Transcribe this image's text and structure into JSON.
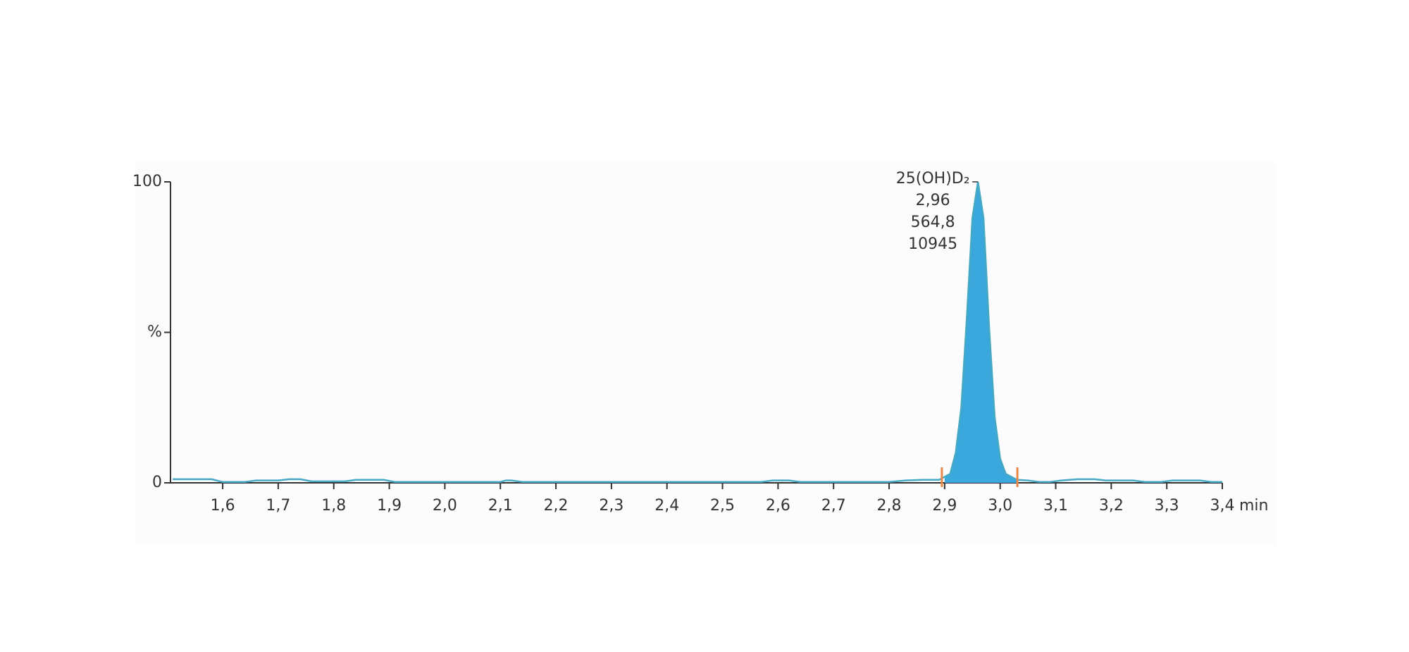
{
  "chart_data": {
    "type": "chromatogram",
    "x": [
      1.51,
      1.58,
      1.6,
      1.64,
      1.66,
      1.7,
      1.72,
      1.74,
      1.76,
      1.82,
      1.84,
      1.89,
      1.91,
      2.1,
      2.11,
      2.12,
      2.14,
      2.57,
      2.59,
      2.62,
      2.64,
      2.8,
      2.83,
      2.86,
      2.89,
      2.9,
      2.91,
      2.92,
      2.93,
      2.94,
      2.95,
      2.96,
      2.97,
      2.98,
      2.99,
      3.0,
      3.01,
      3.02,
      3.03,
      3.05,
      3.07,
      3.09,
      3.11,
      3.14,
      3.17,
      3.19,
      3.24,
      3.26,
      3.29,
      3.31,
      3.36,
      3.38,
      3.4
    ],
    "series": [
      {
        "color": "#45a9c4",
        "fill": "#3aa8dc",
        "values": [
          1.2,
          1.2,
          0.3,
          0.3,
          0.8,
          0.8,
          1.2,
          1.2,
          0.5,
          0.5,
          1.0,
          1.0,
          0.3,
          0.3,
          0.8,
          0.8,
          0.3,
          0.3,
          0.8,
          0.8,
          0.3,
          0.3,
          0.8,
          1.0,
          1.0,
          2,
          3,
          10,
          25,
          55,
          88,
          100,
          88,
          52,
          22,
          8,
          3,
          2,
          1.0,
          0.8,
          0.3,
          0.3,
          0.8,
          1.2,
          1.2,
          0.8,
          0.8,
          0.3,
          0.3,
          0.8,
          0.8,
          0.3,
          0.3
        ]
      }
    ],
    "integration_bounds": [
      2.895,
      3.031
    ],
    "bound_color": "#e8894a",
    "xlim": [
      1.506,
      3.4
    ],
    "xticks": [
      {
        "value": 1.6,
        "label": "1,6"
      },
      {
        "value": 1.7,
        "label": "1,7"
      },
      {
        "value": 1.8,
        "label": "1,8"
      },
      {
        "value": 1.9,
        "label": "1,9"
      },
      {
        "value": 2.0,
        "label": "2,0"
      },
      {
        "value": 2.1,
        "label": "2,1"
      },
      {
        "value": 2.2,
        "label": "2,2"
      },
      {
        "value": 2.3,
        "label": "2,3"
      },
      {
        "value": 2.4,
        "label": "2,4"
      },
      {
        "value": 2.5,
        "label": "2,5"
      },
      {
        "value": 2.6,
        "label": "2,6"
      },
      {
        "value": 2.7,
        "label": "2,7"
      },
      {
        "value": 2.8,
        "label": "2,8"
      },
      {
        "value": 2.9,
        "label": "2,9"
      },
      {
        "value": 3.0,
        "label": "3,0"
      },
      {
        "value": 3.1,
        "label": "3,1"
      },
      {
        "value": 3.2,
        "label": "3,2"
      },
      {
        "value": 3.3,
        "label": "3,3"
      },
      {
        "value": 3.4,
        "label": "3,4"
      }
    ],
    "x_label": "min",
    "ylim": [
      0,
      100
    ],
    "yticks": [
      0,
      {
        "value": 50,
        "label": "%"
      },
      100
    ],
    "peak_annotation": {
      "x": 2.96,
      "y": 100,
      "lines": [
        "25(OH)D₂",
        "2,96",
        "564,8",
        "10945"
      ]
    }
  }
}
